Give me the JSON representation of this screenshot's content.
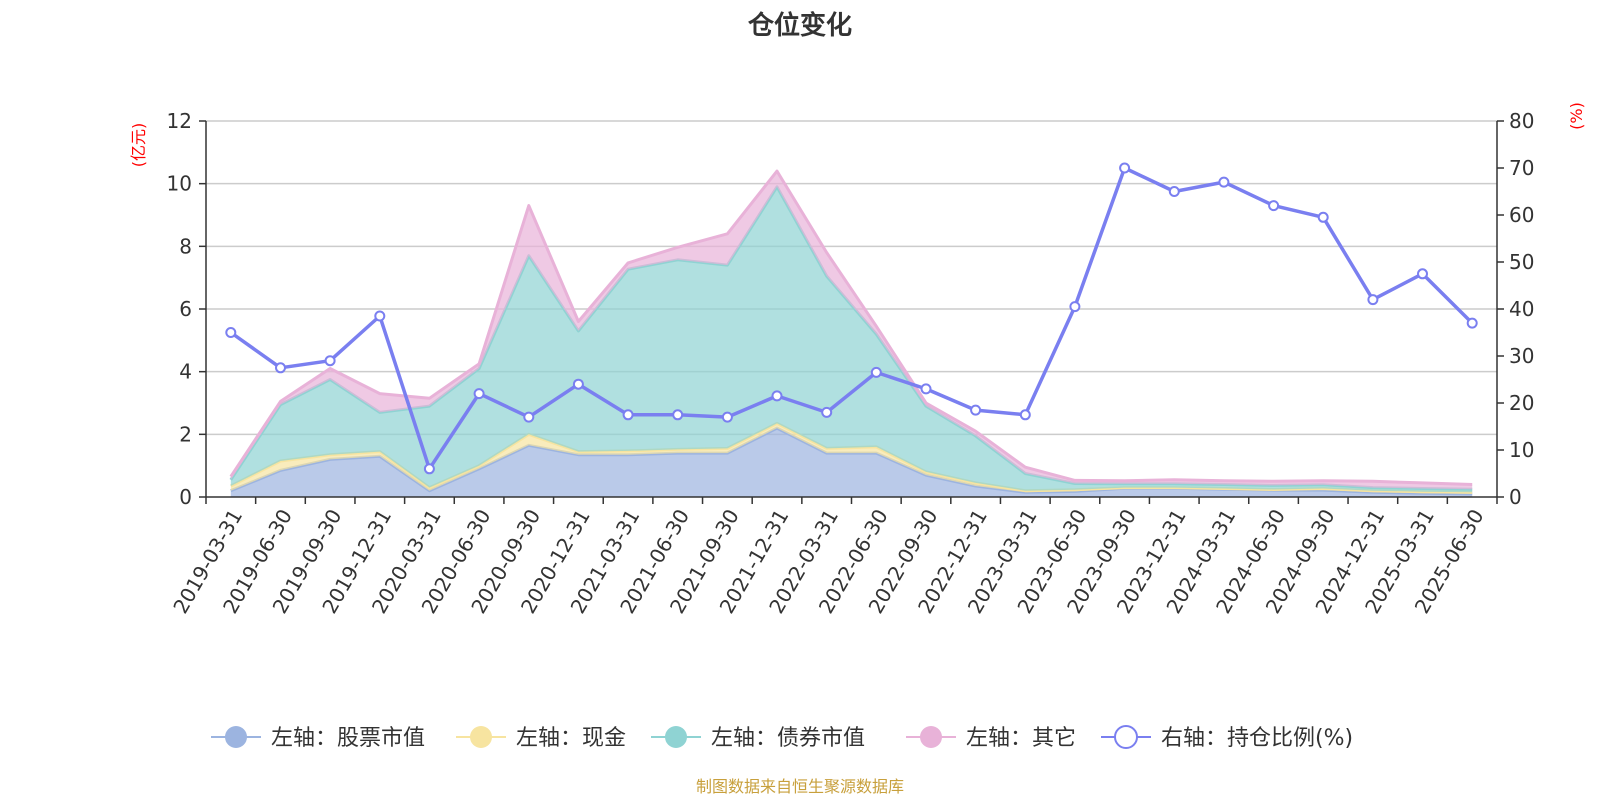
{
  "chart_data": {
    "type": "area",
    "title": "仓位变化",
    "left_axis_unit": "(亿元)",
    "right_axis_unit": "(%)",
    "source_note": "制图数据来自恒生聚源数据库",
    "left_ylim": [
      0,
      12
    ],
    "left_yticks": [
      0,
      2,
      4,
      6,
      8,
      10,
      12
    ],
    "right_ylim": [
      0,
      80
    ],
    "right_yticks": [
      0,
      10,
      20,
      30,
      40,
      50,
      60,
      70,
      80
    ],
    "grid": true,
    "legend_position": "bottom",
    "categories": [
      "2019-03-31",
      "2019-06-30",
      "2019-09-30",
      "2019-12-31",
      "2020-03-31",
      "2020-06-30",
      "2020-09-30",
      "2020-12-31",
      "2021-03-31",
      "2021-06-30",
      "2021-09-30",
      "2021-12-31",
      "2022-03-31",
      "2022-06-30",
      "2022-09-30",
      "2022-12-31",
      "2023-03-31",
      "2023-06-30",
      "2023-09-30",
      "2023-12-31",
      "2024-03-31",
      "2024-06-30",
      "2024-09-30",
      "2024-12-31",
      "2025-03-31",
      "2025-06-30"
    ],
    "series": [
      {
        "name": "左轴：股票市值",
        "axis": "left",
        "kind": "stacked-area",
        "color": "#9cb4e0",
        "values": [
          0.2,
          0.85,
          1.2,
          1.3,
          0.2,
          0.9,
          1.65,
          1.35,
          1.35,
          1.4,
          1.4,
          2.2,
          1.4,
          1.4,
          0.7,
          0.35,
          0.15,
          0.18,
          0.28,
          0.28,
          0.25,
          0.22,
          0.22,
          0.15,
          0.12,
          0.1
        ]
      },
      {
        "name": "左轴：现金",
        "axis": "left",
        "kind": "stacked-area",
        "color": "#f7e4a0",
        "values": [
          0.15,
          0.3,
          0.15,
          0.15,
          0.1,
          0.1,
          0.35,
          0.1,
          0.12,
          0.12,
          0.15,
          0.15,
          0.15,
          0.2,
          0.1,
          0.1,
          0.05,
          0.05,
          0.02,
          0.02,
          0.02,
          0.02,
          0.05,
          0.05,
          0.05,
          0.05
        ]
      },
      {
        "name": "左轴：债券市值",
        "axis": "left",
        "kind": "stacked-area",
        "color": "#8fd3d3",
        "values": [
          0.2,
          1.8,
          2.4,
          1.25,
          2.6,
          3.1,
          5.7,
          3.85,
          5.8,
          6.05,
          5.85,
          7.55,
          5.5,
          3.6,
          2.1,
          1.5,
          0.55,
          0.2,
          0.12,
          0.12,
          0.13,
          0.13,
          0.12,
          0.1,
          0.1,
          0.1
        ]
      },
      {
        "name": "左轴：其它",
        "axis": "left",
        "kind": "stacked-area",
        "color": "#e8b2d8",
        "values": [
          0.1,
          0.1,
          0.35,
          0.6,
          0.25,
          0.15,
          1.6,
          0.3,
          0.2,
          0.4,
          1.0,
          0.5,
          0.75,
          0.25,
          0.1,
          0.15,
          0.2,
          0.1,
          0.1,
          0.13,
          0.12,
          0.13,
          0.13,
          0.2,
          0.18,
          0.15
        ]
      },
      {
        "name": "右轴：持仓比例(%)",
        "axis": "right",
        "kind": "line",
        "color": "#7a7ff0",
        "values": [
          35,
          27.5,
          29,
          38.5,
          6,
          22,
          17,
          24,
          17.5,
          17.5,
          17,
          21.5,
          18,
          26.5,
          23,
          18.5,
          17.5,
          40.5,
          70,
          65,
          67,
          62,
          59.5,
          42,
          47.5,
          37
        ]
      }
    ]
  }
}
